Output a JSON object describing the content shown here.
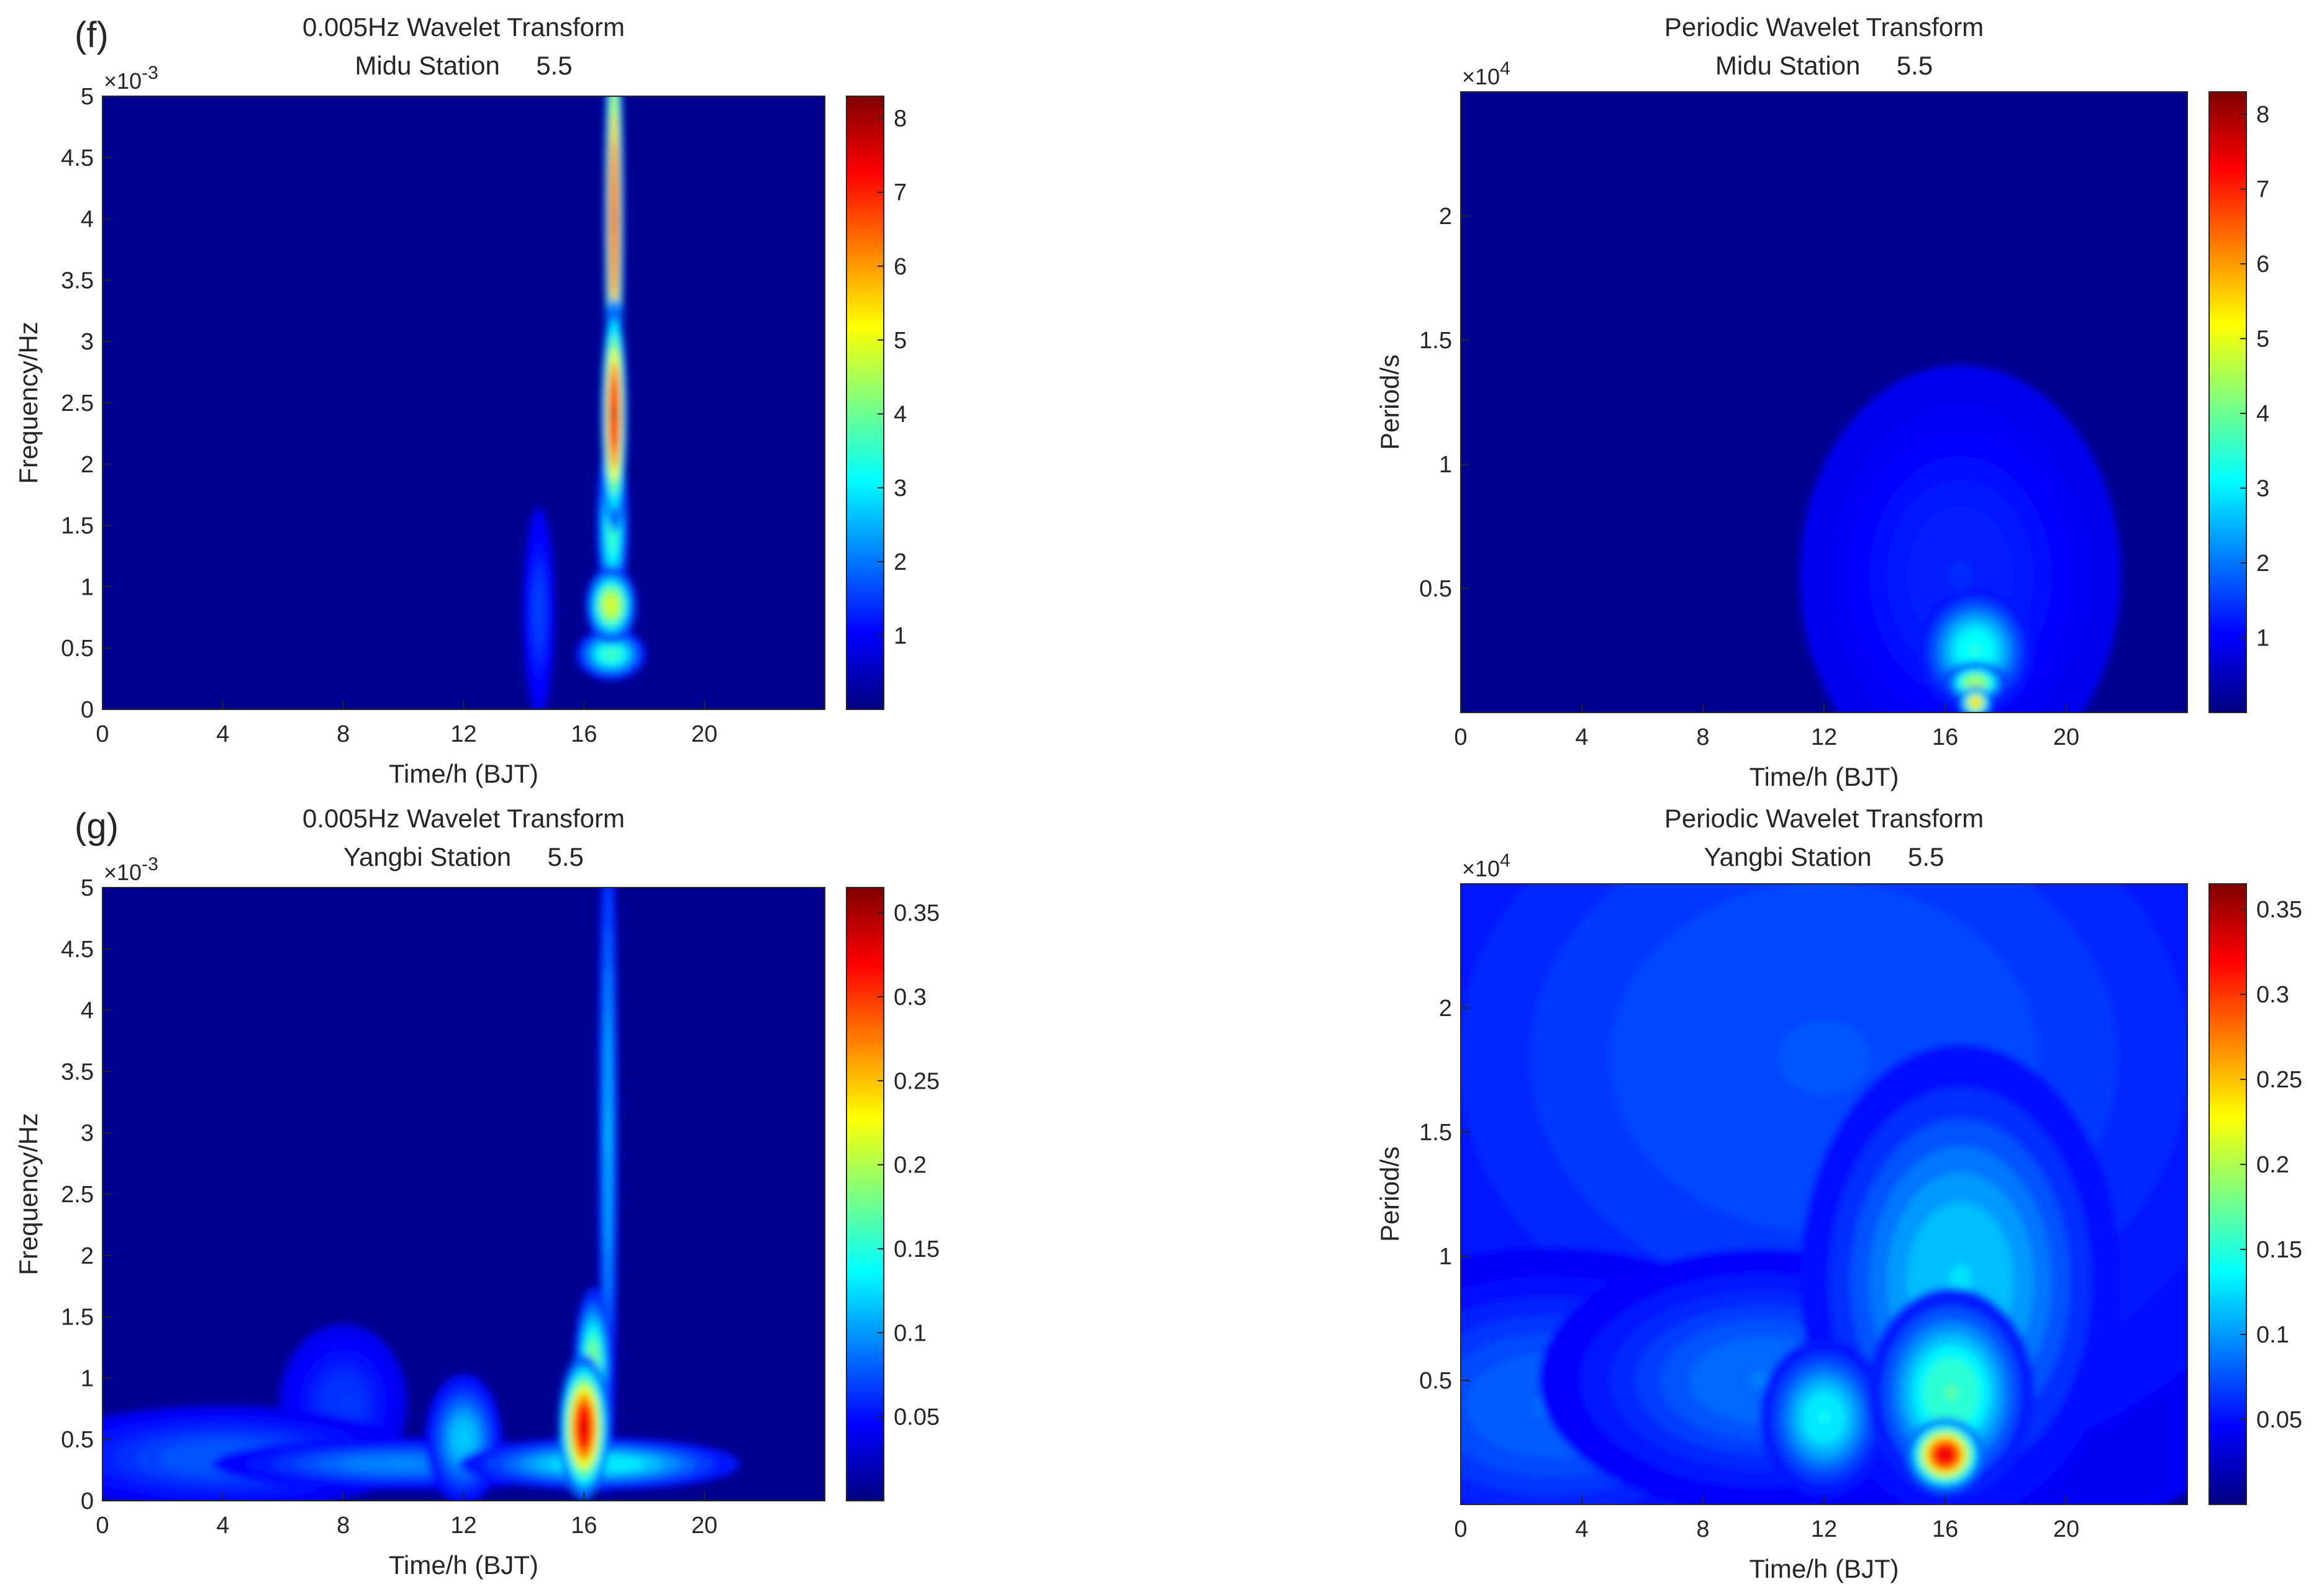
{
  "colors": {
    "jet": [
      "#00007f",
      "#0000ff",
      "#007fff",
      "#00ffff",
      "#7fff7f",
      "#ffff00",
      "#ff7f00",
      "#ff0000",
      "#7f0000"
    ],
    "background": "#00008f",
    "axis": "#262626"
  },
  "chart_data": [
    {
      "type": "heatmap",
      "panel_label": "(f)",
      "title": "0.005Hz Wavelet Transform",
      "subtitle": "Midu Station     5.5",
      "xlabel": "Time/h (BJT)",
      "ylabel": "Frequency/Hz",
      "y_exponent": "×10",
      "y_exponent_power": "-3",
      "xlim": [
        0,
        24
      ],
      "ylim": [
        0,
        5
      ],
      "x_ticks": [
        "0",
        "4",
        "8",
        "12",
        "16",
        "20"
      ],
      "x_tick_values": [
        0,
        4,
        8,
        12,
        16,
        20
      ],
      "y_ticks": [
        "0",
        "0.5",
        "1",
        "1.5",
        "2",
        "2.5",
        "3",
        "3.5",
        "4",
        "4.5",
        "5"
      ],
      "y_tick_values": [
        0,
        0.5,
        1,
        1.5,
        2,
        2.5,
        3,
        3.5,
        4,
        4.5,
        5
      ],
      "colorbar": {
        "min": 0,
        "max": 8.3,
        "ticks": [
          "1",
          "2",
          "3",
          "4",
          "5",
          "6",
          "7",
          "8"
        ],
        "tick_values": [
          1,
          2,
          3,
          4,
          5,
          6,
          7,
          8
        ]
      },
      "hotspots": [
        {
          "t": 17.0,
          "y": 4.0,
          "st": 0.15,
          "sy": 0.9,
          "v": 7.5
        },
        {
          "t": 17.0,
          "y": 2.4,
          "st": 0.2,
          "sy": 0.45,
          "v": 8.3
        },
        {
          "t": 16.95,
          "y": 1.5,
          "st": 0.25,
          "sy": 0.35,
          "v": 3.5
        },
        {
          "t": 16.9,
          "y": 0.85,
          "st": 0.4,
          "sy": 0.15,
          "v": 5.0
        },
        {
          "t": 16.9,
          "y": 0.45,
          "st": 0.55,
          "sy": 0.1,
          "v": 3.4
        },
        {
          "t": 14.5,
          "y": 0.8,
          "st": 0.25,
          "sy": 0.4,
          "v": 0.9
        }
      ]
    },
    {
      "type": "heatmap",
      "title": "Periodic Wavelet Transform",
      "subtitle": "Midu Station     5.5",
      "xlabel": "Time/h (BJT)",
      "ylabel": "Period/s",
      "y_exponent": "×10",
      "y_exponent_power": "4",
      "xlim": [
        0,
        24
      ],
      "ylim": [
        0,
        2.5
      ],
      "x_ticks": [
        "0",
        "4",
        "8",
        "12",
        "16",
        "20"
      ],
      "x_tick_values": [
        0,
        4,
        8,
        12,
        16,
        20
      ],
      "y_ticks": [
        "0.5",
        "1",
        "1.5",
        "2"
      ],
      "y_tick_values": [
        0.5,
        1,
        1.5,
        2
      ],
      "colorbar": {
        "min": 0,
        "max": 8.3,
        "ticks": [
          "1",
          "2",
          "3",
          "4",
          "5",
          "6",
          "7",
          "8"
        ],
        "tick_values": [
          1,
          2,
          3,
          4,
          5,
          6,
          7,
          8
        ]
      },
      "hotspots": [
        {
          "t": 17.0,
          "y": 0.25,
          "st": 0.9,
          "sy": 0.12,
          "v": 3.0
        },
        {
          "t": 17.0,
          "y": 0.12,
          "st": 0.5,
          "sy": 0.04,
          "v": 4.5
        },
        {
          "t": 17.0,
          "y": 0.04,
          "st": 0.25,
          "sy": 0.03,
          "v": 6.0
        },
        {
          "t": 16.5,
          "y": 0.55,
          "st": 2.5,
          "sy": 0.4,
          "v": 0.6
        }
      ]
    },
    {
      "type": "heatmap",
      "panel_label": "(g)",
      "title": "0.005Hz Wavelet Transform",
      "subtitle": "Yangbi Station     5.5",
      "xlabel": "Time/h (BJT)",
      "ylabel": "Frequency/Hz",
      "y_exponent": "×10",
      "y_exponent_power": "-3",
      "xlim": [
        0,
        24
      ],
      "ylim": [
        0,
        5
      ],
      "x_ticks": [
        "0",
        "4",
        "8",
        "12",
        "16",
        "20"
      ],
      "x_tick_values": [
        0,
        4,
        8,
        12,
        16,
        20
      ],
      "y_ticks": [
        "0",
        "0.5",
        "1",
        "1.5",
        "2",
        "2.5",
        "3",
        "3.5",
        "4",
        "4.5",
        "5"
      ],
      "y_tick_values": [
        0,
        0.5,
        1,
        1.5,
        2,
        2.5,
        3,
        3.5,
        4,
        4.5,
        5
      ],
      "colorbar": {
        "min": 0,
        "max": 0.365,
        "ticks": [
          "0.05",
          "0.1",
          "0.15",
          "0.2",
          "0.25",
          "0.3",
          "0.35"
        ],
        "tick_values": [
          0.05,
          0.1,
          0.15,
          0.2,
          0.25,
          0.3,
          0.35
        ]
      },
      "hotspots": [
        {
          "t": 16.0,
          "y": 0.6,
          "st": 0.4,
          "sy": 0.28,
          "v": 0.36
        },
        {
          "t": 16.3,
          "y": 1.1,
          "st": 0.3,
          "sy": 0.3,
          "v": 0.18
        },
        {
          "t": 16.8,
          "y": 3.0,
          "st": 0.15,
          "sy": 1.4,
          "v": 0.09
        },
        {
          "t": 16.5,
          "y": 0.3,
          "st": 2.2,
          "sy": 0.1,
          "v": 0.12
        },
        {
          "t": 12.0,
          "y": 0.5,
          "st": 0.6,
          "sy": 0.25,
          "v": 0.1
        },
        {
          "t": 10.0,
          "y": 0.3,
          "st": 3.0,
          "sy": 0.1,
          "v": 0.07
        },
        {
          "t": 4.0,
          "y": 0.35,
          "st": 3.0,
          "sy": 0.2,
          "v": 0.05
        },
        {
          "t": 8.0,
          "y": 0.8,
          "st": 1.0,
          "sy": 0.3,
          "v": 0.035
        }
      ]
    },
    {
      "type": "heatmap",
      "title": "Periodic Wavelet Transform",
      "subtitle": "Yangbi Station     5.5",
      "xlabel": "Time/h (BJT)",
      "ylabel": "Period/s",
      "y_exponent": "×10",
      "y_exponent_power": "4",
      "xlim": [
        0,
        24
      ],
      "ylim": [
        0,
        2.5
      ],
      "x_ticks": [
        "0",
        "4",
        "8",
        "12",
        "16",
        "20"
      ],
      "x_tick_values": [
        0,
        4,
        8,
        12,
        16,
        20
      ],
      "y_ticks": [
        "0.5",
        "1",
        "1.5",
        "2"
      ],
      "y_tick_values": [
        0.5,
        1,
        1.5,
        2
      ],
      "colorbar": {
        "min": 0,
        "max": 0.365,
        "ticks": [
          "0.05",
          "0.1",
          "0.15",
          "0.2",
          "0.25",
          "0.3",
          "0.35"
        ],
        "tick_values": [
          0.05,
          0.1,
          0.15,
          0.2,
          0.25,
          0.3,
          0.35
        ]
      },
      "hotspots": [
        {
          "t": 16.0,
          "y": 0.2,
          "st": 0.6,
          "sy": 0.07,
          "v": 0.36
        },
        {
          "t": 16.2,
          "y": 0.45,
          "st": 1.3,
          "sy": 0.2,
          "v": 0.15
        },
        {
          "t": 16.5,
          "y": 0.9,
          "st": 2.5,
          "sy": 0.45,
          "v": 0.1
        },
        {
          "t": 12.0,
          "y": 0.35,
          "st": 1.0,
          "sy": 0.15,
          "v": 0.12
        },
        {
          "t": 10.0,
          "y": 0.5,
          "st": 3.5,
          "sy": 0.25,
          "v": 0.06
        },
        {
          "t": 3.0,
          "y": 0.4,
          "st": 4.0,
          "sy": 0.3,
          "v": 0.055
        },
        {
          "t": 12.0,
          "y": 1.8,
          "st": 10.0,
          "sy": 1.0,
          "v": 0.045
        }
      ]
    }
  ]
}
